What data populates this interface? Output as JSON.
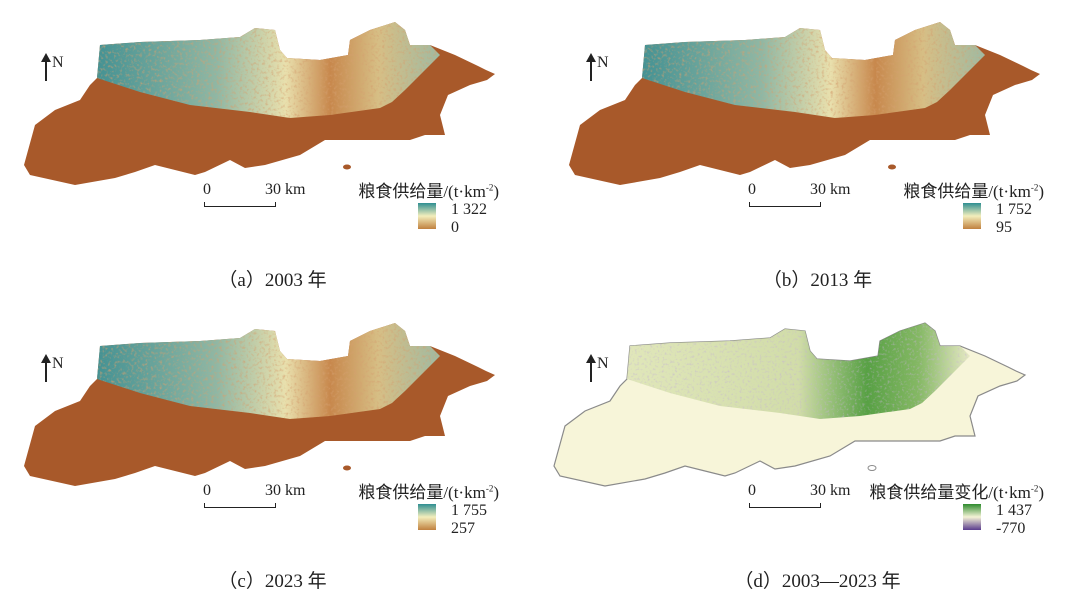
{
  "figure": {
    "panels": [
      {
        "caption": "（a）2003 年",
        "north_label": "N",
        "scale_zero": "0",
        "scale_label": "30 km",
        "legend_title": "粮食供给量/(t·km",
        "legend_unit_exp": "-2",
        "legend_close": ")",
        "legend_max": "1 322",
        "legend_min": "0",
        "ramp": [
          "#2f8f92",
          "#f3eebc",
          "#c0813f"
        ],
        "mode": "supply"
      },
      {
        "caption": "（b）2013 年",
        "north_label": "N",
        "scale_zero": "0",
        "scale_label": "30 km",
        "legend_title": "粮食供给量/(t·km",
        "legend_unit_exp": "-2",
        "legend_close": ")",
        "legend_max": "1 752",
        "legend_min": "95",
        "ramp": [
          "#2f8f92",
          "#f3eebc",
          "#c0813f"
        ],
        "mode": "supply"
      },
      {
        "caption": "（c）2023 年",
        "north_label": "N",
        "scale_zero": "0",
        "scale_label": "30 km",
        "legend_title": "粮食供给量/(t·km",
        "legend_unit_exp": "-2",
        "legend_close": ")",
        "legend_max": "1 755",
        "legend_min": "257",
        "ramp": [
          "#2f8f92",
          "#f3eebc",
          "#c0813f"
        ],
        "mode": "supply"
      },
      {
        "caption": "（d）2003—2023 年",
        "north_label": "N",
        "scale_zero": "0",
        "scale_label": "30 km",
        "legend_title": "粮食供给量变化/(t·km",
        "legend_unit_exp": "-2",
        "legend_close": ")",
        "legend_max": "1 437",
        "legend_min": "-770",
        "ramp": [
          "#2e8b2e",
          "#f5f3d6",
          "#5a3c8e"
        ],
        "mode": "change"
      }
    ],
    "colors": {
      "low_supply": "#a8592a",
      "high_supply": "#3f9599",
      "mid_supply": "#ece7b4",
      "change_background": "#f7f5d9",
      "change_increase": "#4f9c3c",
      "boundary": "#8a8a8a"
    }
  }
}
